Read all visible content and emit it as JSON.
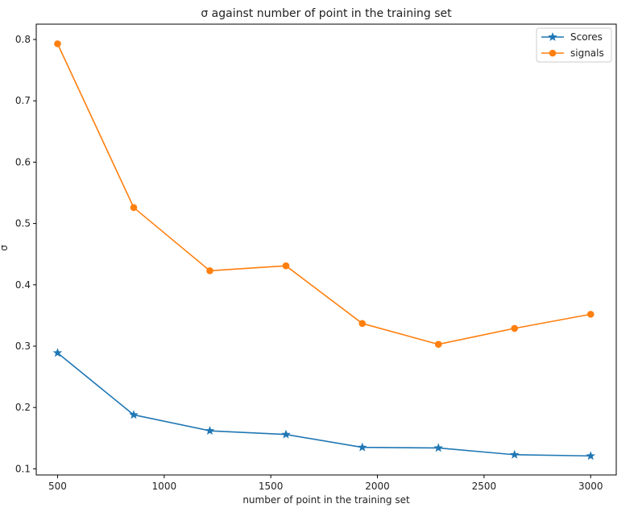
{
  "chart_data": {
    "type": "line",
    "title": "σ against number of point in the training set",
    "xlabel": "number of point in the training set",
    "ylabel": "σ",
    "x": [
      500,
      857,
      1214,
      1571,
      1929,
      2286,
      2643,
      3000
    ],
    "series": [
      {
        "name": "Scores",
        "marker": "star",
        "color": "#1f77b4",
        "values": [
          0.289,
          0.188,
          0.162,
          0.156,
          0.135,
          0.134,
          0.123,
          0.121
        ]
      },
      {
        "name": "signals",
        "marker": "circle",
        "color": "#ff7f0e",
        "values": [
          0.793,
          0.526,
          0.423,
          0.431,
          0.337,
          0.303,
          0.329,
          0.352
        ]
      }
    ],
    "xlim": [
      400,
      3120
    ],
    "ylim": [
      0.09,
      0.825
    ],
    "xticks": [
      500,
      1000,
      1500,
      2000,
      2500,
      3000
    ],
    "yticks": [
      0.1,
      0.2,
      0.3,
      0.4,
      0.5,
      0.6,
      0.7,
      0.8
    ],
    "grid": false,
    "legend_position": "top-right"
  }
}
